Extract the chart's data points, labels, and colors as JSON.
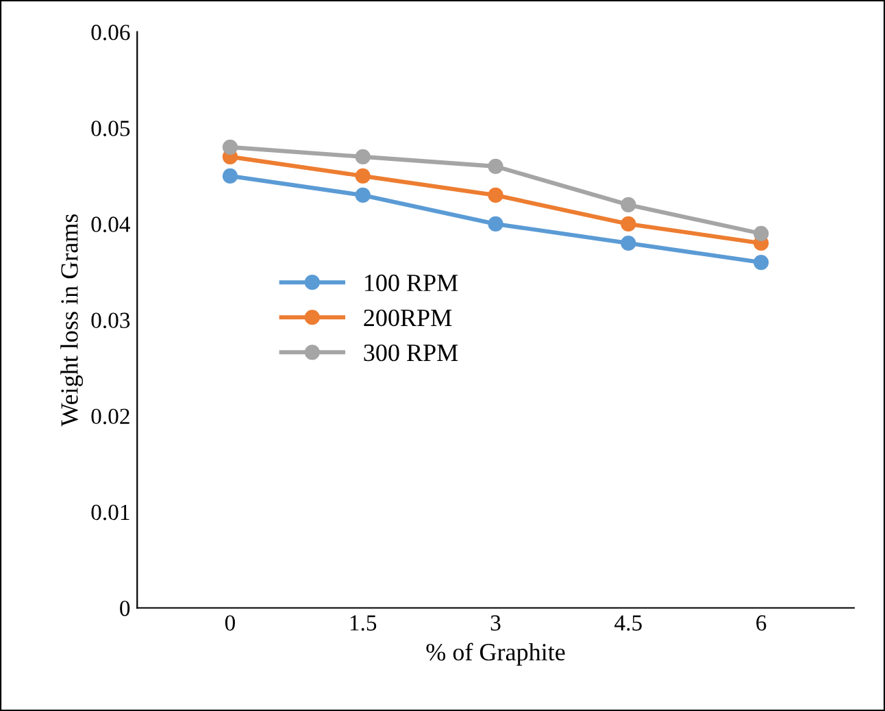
{
  "chart_data": {
    "type": "line",
    "xlabel": "% of Graphite",
    "ylabel": "Weight loss in Grams",
    "categories": [
      "0",
      "1.5",
      "3",
      "4.5",
      "6"
    ],
    "series": [
      {
        "name": "100 RPM",
        "color": "#5b9bd5",
        "values": [
          0.045,
          0.043,
          0.04,
          0.038,
          0.036
        ]
      },
      {
        "name": "200RPM",
        "color": "#ed7d31",
        "values": [
          0.047,
          0.045,
          0.043,
          0.04,
          0.038
        ]
      },
      {
        "name": "300 RPM",
        "color": "#a5a5a5",
        "values": [
          0.048,
          0.047,
          0.046,
          0.042,
          0.039
        ]
      }
    ],
    "ylim": [
      0,
      0.06
    ],
    "yticks": [
      0,
      0.01,
      0.02,
      0.03,
      0.04,
      0.05,
      0.06
    ],
    "grid": false,
    "legend": "center left",
    "marker": "circle",
    "line_style": "solid"
  }
}
